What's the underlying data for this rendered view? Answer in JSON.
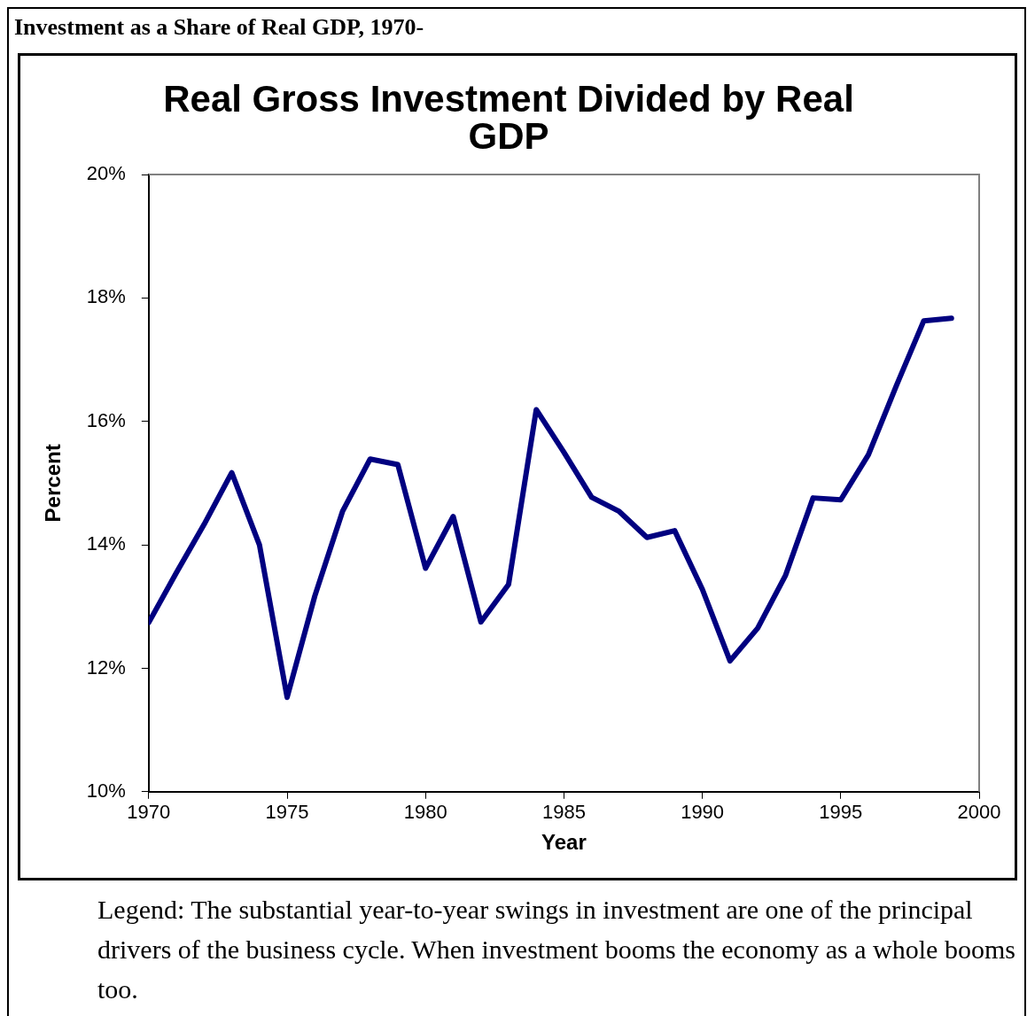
{
  "chart_data": {
    "type": "line",
    "title": "Real Gross Investment Divided by Real GDP",
    "xlabel": "Year",
    "ylabel": "Percent",
    "annotations": [
      "Investment as a Share of Real GDP, 1970-",
      "Legend: The substantial year-to-year swings in investment are one of the principal drivers of the business cycle. When investment booms the economy as a whole booms too."
    ],
    "x": [
      1970,
      1971,
      1972,
      1973,
      1974,
      1975,
      1976,
      1977,
      1978,
      1979,
      1980,
      1981,
      1982,
      1983,
      1984,
      1985,
      1986,
      1987,
      1988,
      1989,
      1990,
      1991,
      1992,
      1993,
      1994,
      1995,
      1996,
      1997,
      1998,
      1999
    ],
    "series": [
      {
        "color": "#000080",
        "values": [
          12.74,
          13.55,
          14.33,
          15.17,
          14.0,
          11.53,
          13.17,
          14.54,
          15.39,
          15.3,
          13.62,
          14.46,
          12.75,
          13.36,
          16.19,
          15.5,
          14.77,
          14.54,
          14.12,
          14.23,
          13.28,
          12.12,
          12.65,
          13.5,
          14.76,
          14.73,
          15.46,
          16.57,
          17.63,
          17.67
        ]
      }
    ],
    "xlim": [
      1970,
      2000
    ],
    "xticks": [
      1970,
      1975,
      1980,
      1985,
      1990,
      1995,
      2000
    ],
    "ylim": [
      10,
      20
    ],
    "yticks": [
      {
        "value": 10,
        "label": "10%"
      },
      {
        "value": 12,
        "label": "12%"
      },
      {
        "value": 14,
        "label": "14%"
      },
      {
        "value": 16,
        "label": "16%"
      },
      {
        "value": 18,
        "label": "18%"
      },
      {
        "value": 20,
        "label": "20%"
      }
    ],
    "grid": false,
    "legend": false,
    "marker": "none",
    "line_style": "solid"
  }
}
